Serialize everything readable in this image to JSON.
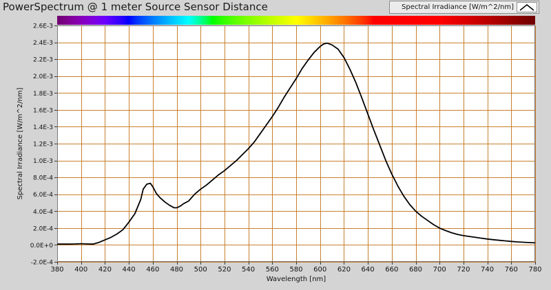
{
  "window": {
    "title": "PowerSpectrum @ 1 meter Source Sensor Distance"
  },
  "legend": {
    "label": "Spectral Irradiance [W/m^2/nm]",
    "swatch_icon": "line-sample-icon"
  },
  "colors": {
    "panel_bg": "#d4d4d4",
    "plot_bg": "#ffffff",
    "grid": "#c87f2e",
    "curve": "#000000"
  },
  "chart_data": {
    "type": "line",
    "title": "PowerSpectrum @ 1 meter Source Sensor Distance",
    "xlabel": "Wavelength [nm]",
    "ylabel": "Spectral Irradiance [W/m^2/nm]",
    "xlim": [
      380,
      780
    ],
    "ylim": [
      -0.0002,
      0.0026
    ],
    "grid": true,
    "legend_position": "top-right",
    "spectrum_bar": true,
    "x_ticks": [
      380,
      400,
      420,
      440,
      460,
      480,
      500,
      520,
      540,
      560,
      580,
      600,
      620,
      640,
      660,
      680,
      700,
      720,
      740,
      760,
      780
    ],
    "x_tick_labels": [
      "380",
      "400",
      "420",
      "440",
      "460",
      "480",
      "500",
      "520",
      "540",
      "560",
      "580",
      "600",
      "620",
      "640",
      "660",
      "680",
      "700",
      "720",
      "740",
      "760",
      "780"
    ],
    "y_ticks": [
      -0.0002,
      0,
      0.0002,
      0.0004,
      0.0006,
      0.0008,
      0.001,
      0.0012,
      0.0014,
      0.0016,
      0.0018,
      0.002,
      0.0022,
      0.0024,
      0.0026
    ],
    "y_tick_labels": [
      "-2.0E-4",
      "0.0E+0",
      "2.0E-4",
      "4.0E-4",
      "6.0E-4",
      "8.0E-4",
      "1.0E-3",
      "1.2E-3",
      "1.4E-3",
      "1.6E-3",
      "1.8E-3",
      "2.0E-3",
      "2.2E-3",
      "2.4E-3",
      "2.6E-3"
    ],
    "series": [
      {
        "name": "Spectral Irradiance [W/m^2/nm]",
        "x": [
          380,
          385,
          390,
          395,
          400,
          405,
          410,
          415,
          420,
          425,
          430,
          435,
          440,
          445,
          450,
          452,
          455,
          458,
          460,
          463,
          466,
          470,
          474,
          478,
          480,
          483,
          486,
          490,
          495,
          500,
          505,
          510,
          515,
          520,
          525,
          530,
          535,
          540,
          545,
          550,
          555,
          560,
          565,
          570,
          575,
          580,
          585,
          590,
          595,
          600,
          603,
          606,
          610,
          615,
          620,
          625,
          630,
          635,
          640,
          645,
          650,
          655,
          660,
          665,
          670,
          675,
          680,
          685,
          690,
          695,
          700,
          705,
          710,
          715,
          720,
          725,
          730,
          735,
          740,
          745,
          750,
          755,
          760,
          765,
          770,
          775,
          780
        ],
        "y": [
          1e-05,
          1e-05,
          1e-05,
          1.2e-05,
          1.5e-05,
          1.2e-05,
          1e-05,
          3e-05,
          6e-05,
          9e-05,
          0.00013,
          0.00018,
          0.00027,
          0.00037,
          0.00054,
          0.00066,
          0.00072,
          0.00073,
          0.00069,
          0.00061,
          0.00056,
          0.00051,
          0.00047,
          0.00044,
          0.00044,
          0.00046,
          0.00049,
          0.00052,
          0.0006,
          0.00066,
          0.00071,
          0.00077,
          0.00083,
          0.00088,
          0.00094,
          0.001,
          0.00107,
          0.00114,
          0.00122,
          0.00132,
          0.00142,
          0.00152,
          0.00163,
          0.00175,
          0.00186,
          0.00197,
          0.00209,
          0.00219,
          0.00228,
          0.00235,
          0.00238,
          0.00239,
          0.00237,
          0.00232,
          0.00222,
          0.00208,
          0.00192,
          0.00174,
          0.00155,
          0.00136,
          0.00118,
          0.001,
          0.00084,
          0.0007,
          0.00058,
          0.00048,
          0.0004,
          0.00034,
          0.00029,
          0.00024,
          0.0002,
          0.00017,
          0.000145,
          0.000125,
          0.00011,
          0.0001,
          9e-05,
          8e-05,
          7e-05,
          6.2e-05,
          5.5e-05,
          4.8e-05,
          4.2e-05,
          3.6e-05,
          3.2e-05,
          2.8e-05,
          2.5e-05
        ]
      }
    ]
  }
}
